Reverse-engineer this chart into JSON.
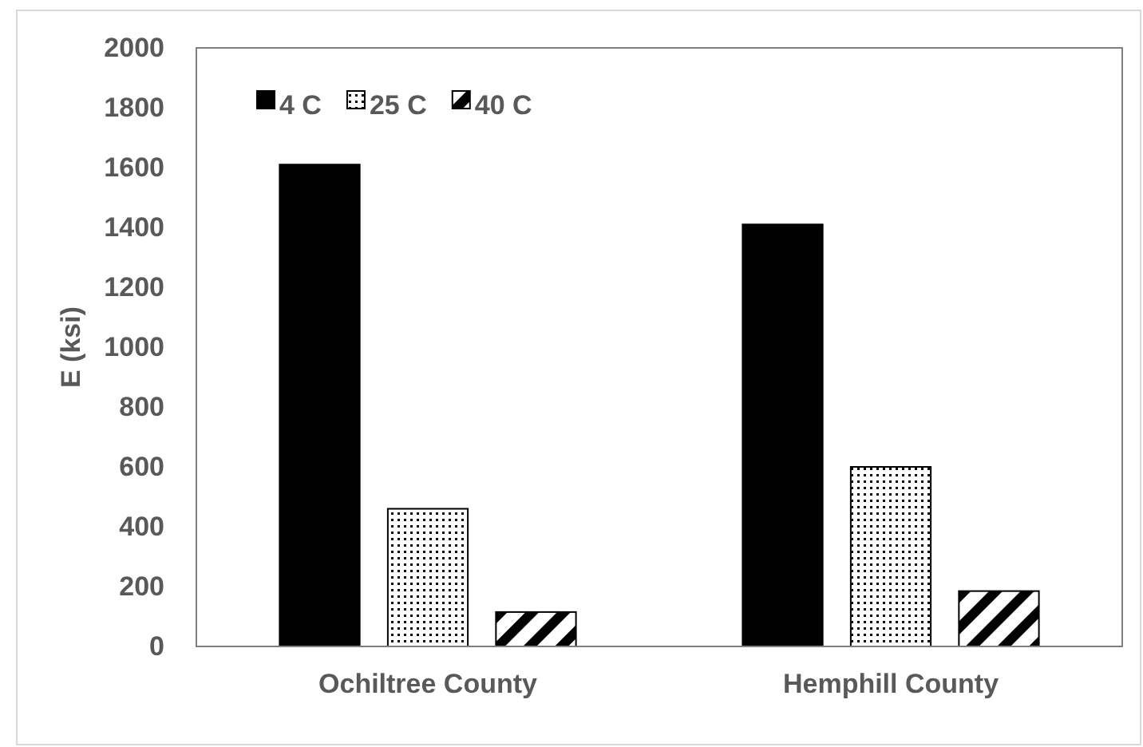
{
  "chart_data": {
    "type": "bar",
    "ylabel": "E (ksi)",
    "categories": [
      "Ochiltree County",
      "Hemphill County"
    ],
    "series": [
      {
        "name": "4 C",
        "color": "#000000",
        "values": [
          1610,
          1410
        ]
      },
      {
        "name": "25 C",
        "color": "#000000",
        "values": [
          460,
          600
        ]
      },
      {
        "name": "40 C",
        "color": "#000000",
        "values": [
          115,
          185
        ]
      }
    ],
    "ylim": [
      0,
      2000
    ],
    "yticks": [
      0,
      200,
      400,
      600,
      800,
      1000,
      1200,
      1400,
      1600,
      1800,
      2000
    ],
    "grid": false,
    "legend": "top left"
  }
}
